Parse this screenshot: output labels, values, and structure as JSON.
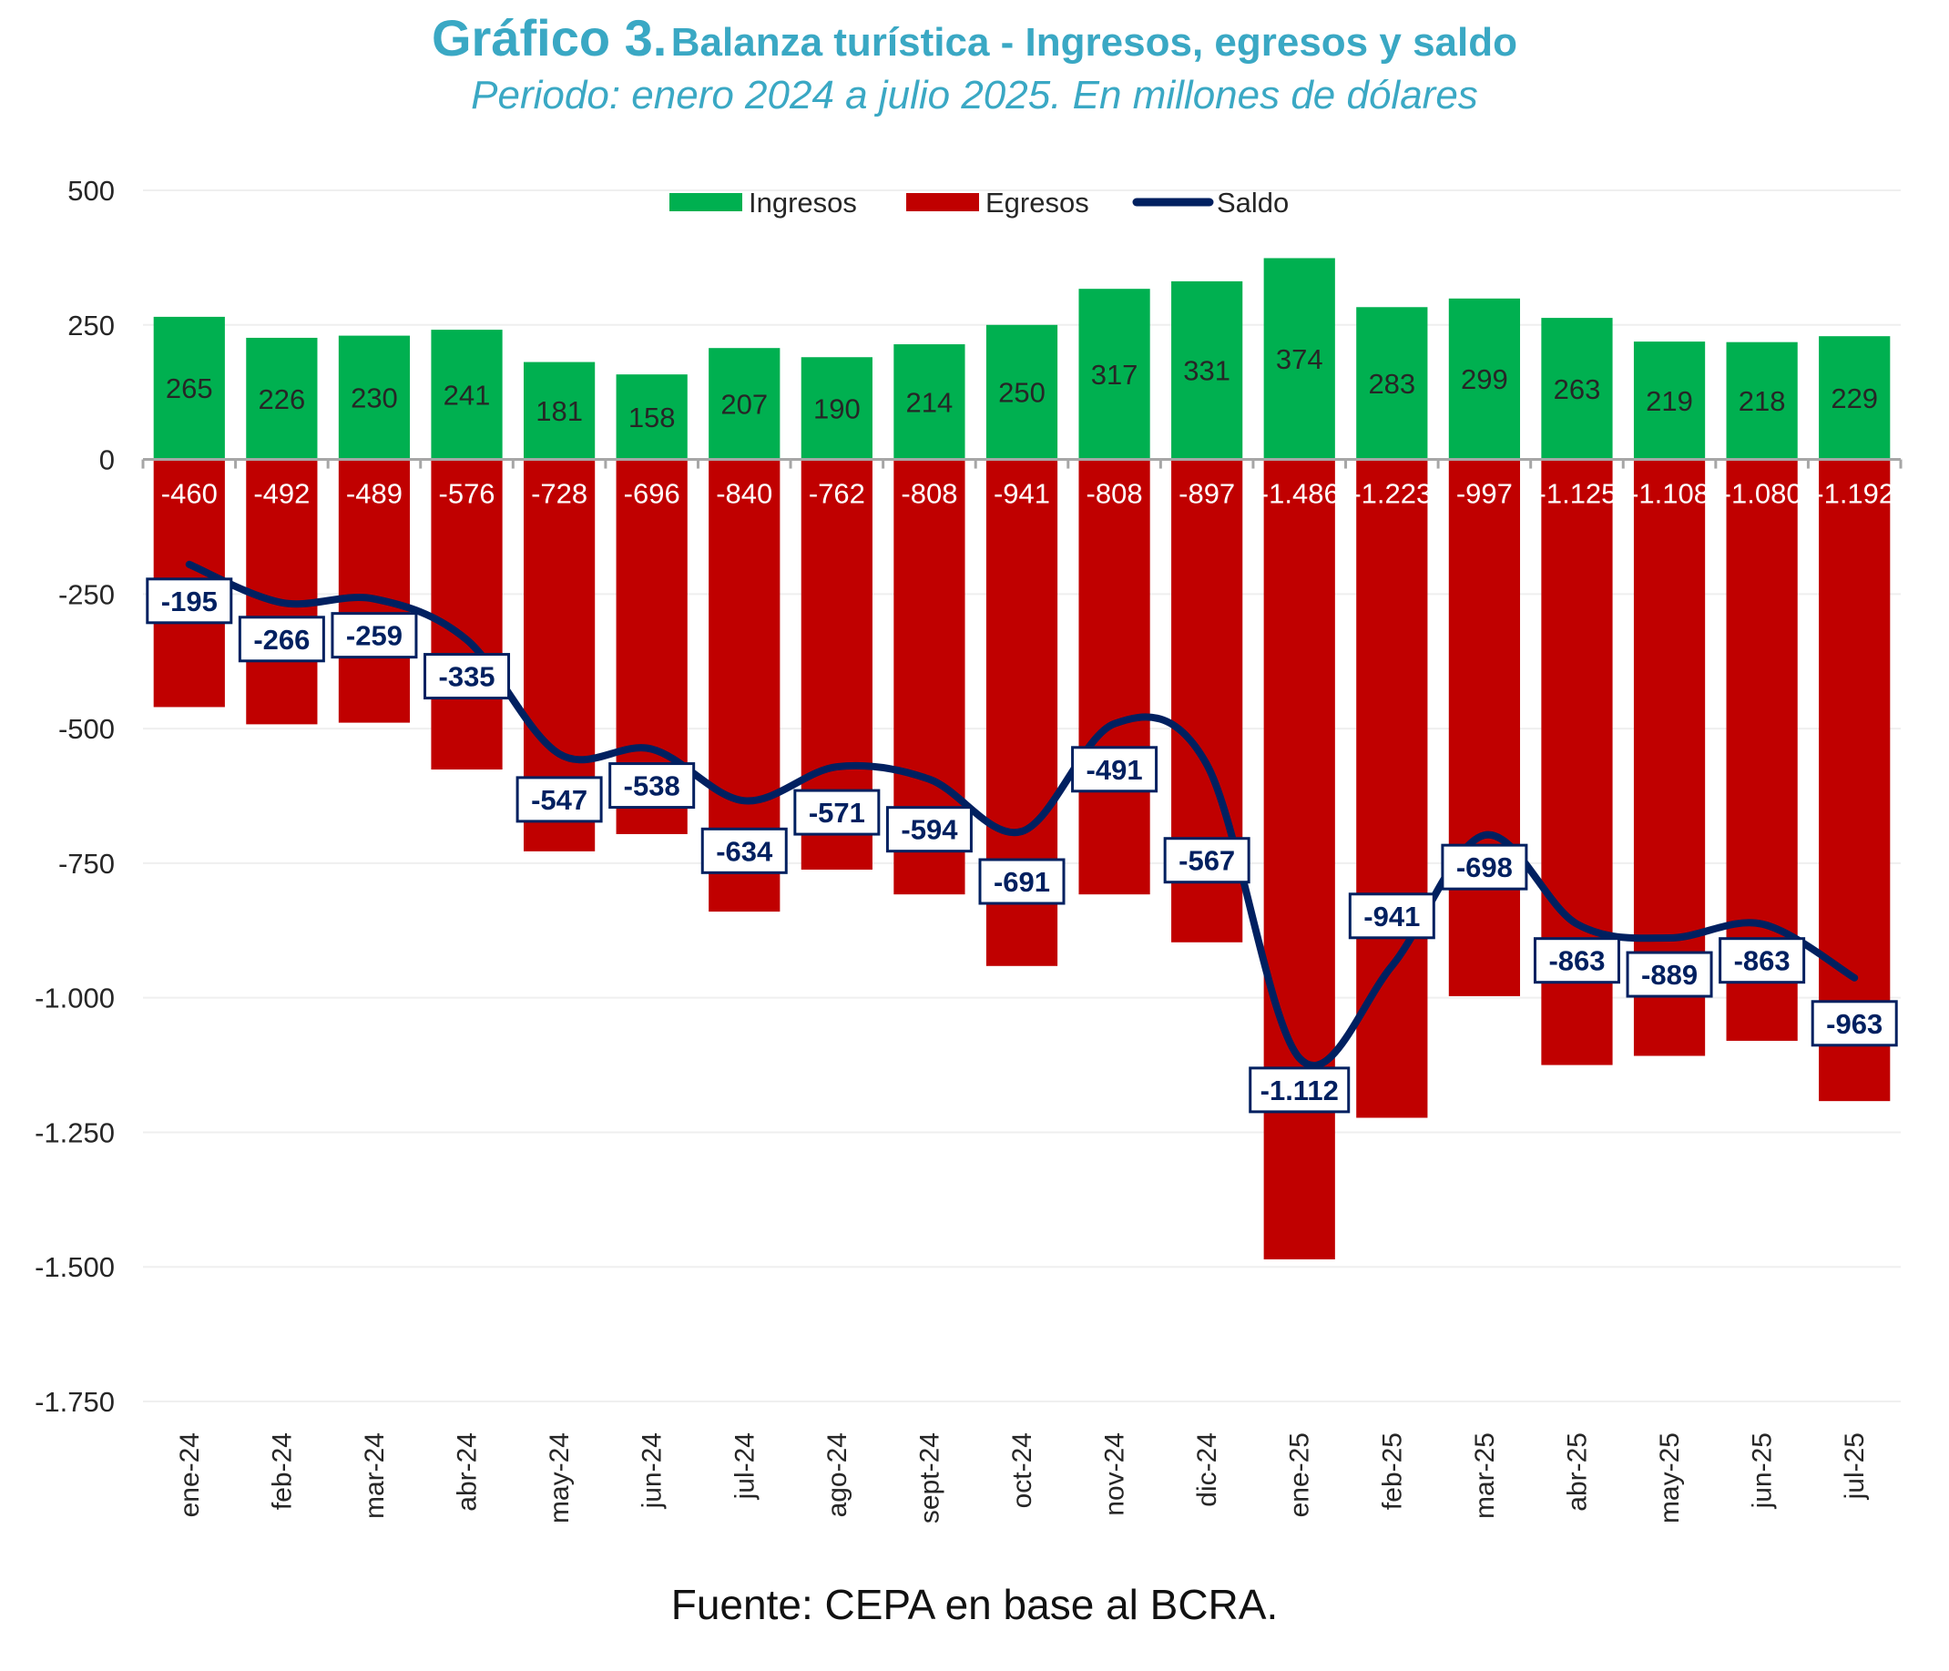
{
  "title": {
    "prefix": "Gráfico 3.",
    "main": "Balanza turística - Ingresos, egresos y saldo",
    "subtitle": "Periodo: enero 2024 a julio 2025. En millones de dólares"
  },
  "footer": "Fuente: CEPA en base al BCRA.",
  "colors": {
    "title": "#3aa8c4",
    "ingresos": "#00b050",
    "egresos": "#c00000",
    "saldo": "#002060",
    "grid": "#efefef",
    "axis": "#a6a6a6"
  },
  "chart_data": {
    "type": "bar",
    "title": "Gráfico 3. Balanza turística - Ingresos, egresos y saldo",
    "subtitle": "Periodo: enero 2024 a julio 2025. En millones de dólares",
    "xlabel": "",
    "ylabel": "",
    "ylim": [
      -1750,
      500
    ],
    "yticks": [
      500,
      250,
      0,
      -250,
      -500,
      -750,
      -1000,
      -1250,
      -1500,
      -1750
    ],
    "ytick_labels": [
      "500",
      "250",
      "0",
      "-250",
      "-500",
      "-750",
      "-1.000",
      "-1.250",
      "-1.500",
      "-1.750"
    ],
    "grid": true,
    "legend_position": "top-center",
    "categories": [
      "ene-24",
      "feb-24",
      "mar-24",
      "abr-24",
      "may-24",
      "jun-24",
      "jul-24",
      "ago-24",
      "sept-24",
      "oct-24",
      "nov-24",
      "dic-24",
      "ene-25",
      "feb-25",
      "mar-25",
      "abr-25",
      "may-25",
      "jun-25",
      "jul-25"
    ],
    "series": [
      {
        "name": "Ingresos",
        "type": "bar",
        "values": [
          265,
          226,
          230,
          241,
          181,
          158,
          207,
          190,
          214,
          250,
          317,
          331,
          374,
          283,
          299,
          263,
          219,
          218,
          229
        ],
        "labels": [
          "265",
          "226",
          "230",
          "241",
          "181",
          "158",
          "207",
          "190",
          "214",
          "250",
          "317",
          "331",
          "374",
          "283",
          "299",
          "263",
          "219",
          "218",
          "229"
        ]
      },
      {
        "name": "Egresos",
        "type": "bar",
        "values": [
          -460,
          -492,
          -489,
          -576,
          -728,
          -696,
          -840,
          -762,
          -808,
          -941,
          -808,
          -897,
          -1486,
          -1223,
          -997,
          -1125,
          -1108,
          -1080,
          -1192
        ],
        "labels": [
          "-460",
          "-492",
          "-489",
          "-576",
          "-728",
          "-696",
          "-840",
          "-762",
          "-808",
          "-941",
          "-808",
          "-897",
          "-1.486",
          "-1.223",
          "-997",
          "-1.125",
          "-1.108",
          "-1.080",
          "-1.192"
        ]
      },
      {
        "name": "Saldo",
        "type": "line",
        "values": [
          -195,
          -266,
          -259,
          -335,
          -547,
          -538,
          -634,
          -571,
          -594,
          -691,
          -491,
          -567,
          -1112,
          -941,
          -698,
          -863,
          -889,
          -863,
          -963
        ],
        "labels": [
          "-195",
          "-266",
          "-259",
          "-335",
          "-547",
          "-538",
          "-634",
          "-571",
          "-594",
          "-691",
          "-491",
          "-567",
          "-1.112",
          "-941",
          "-698",
          "-863",
          "-889",
          "-863",
          "-963"
        ]
      }
    ]
  }
}
